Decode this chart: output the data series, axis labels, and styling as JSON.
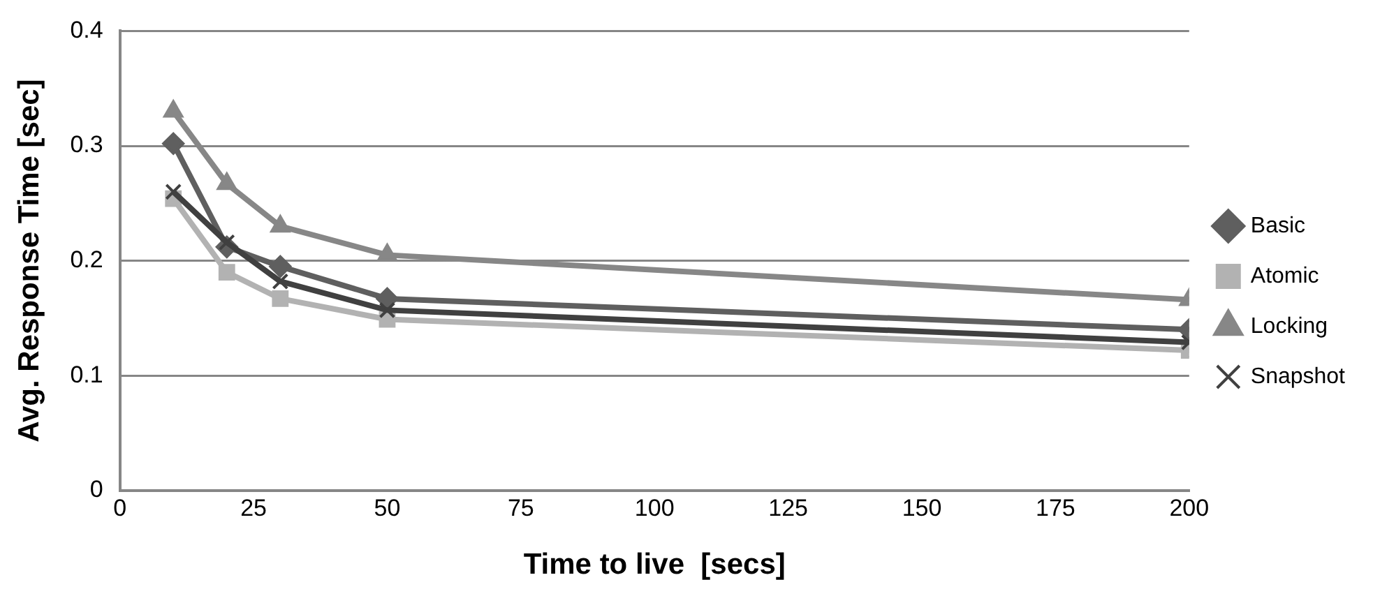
{
  "chart_data": {
    "type": "line",
    "xlabel": "Time to live  [secs]",
    "ylabel": "Avg. Response Time [sec]",
    "x": [
      10,
      20,
      30,
      50,
      200
    ],
    "series": [
      {
        "name": "Basic",
        "color": "#5f5f5f",
        "marker": "diamond",
        "values": [
          0.302,
          0.212,
          0.195,
          0.167,
          0.14
        ]
      },
      {
        "name": "Atomic",
        "color": "#b2b2b2",
        "marker": "square",
        "values": [
          0.254,
          0.19,
          0.167,
          0.149,
          0.122
        ]
      },
      {
        "name": "Locking",
        "color": "#878787",
        "marker": "triangle",
        "values": [
          0.33,
          0.267,
          0.23,
          0.205,
          0.166
        ]
      },
      {
        "name": "Snapshot",
        "color": "#404040",
        "marker": "cross",
        "values": [
          0.26,
          0.216,
          0.182,
          0.157,
          0.129
        ]
      }
    ],
    "xlim": [
      0,
      200
    ],
    "xticks": [
      0,
      25,
      50,
      75,
      100,
      125,
      150,
      175,
      200
    ],
    "ylim": [
      0,
      0.4
    ],
    "yticks": [
      0,
      0.1,
      0.2,
      0.3,
      0.4
    ],
    "grid": "y",
    "legend": "right",
    "line_style": "solid"
  }
}
